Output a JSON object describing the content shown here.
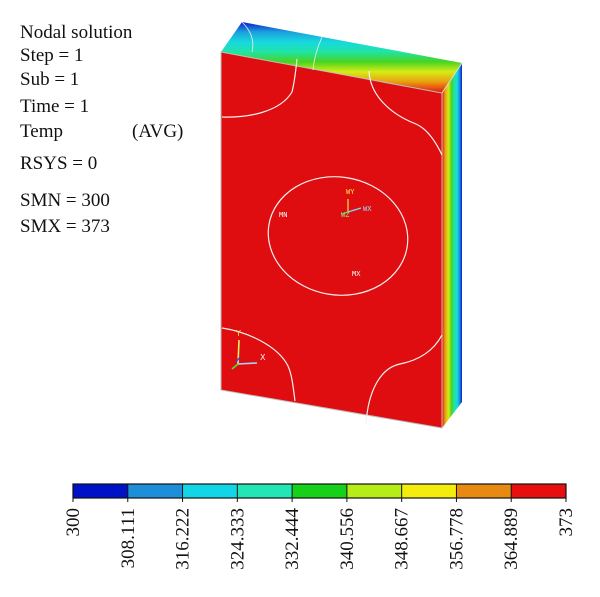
{
  "info": {
    "title": "Nodal solution",
    "step": "Step = 1",
    "sub": "Sub = 1",
    "time": "Time = 1",
    "temp": "Temp",
    "avg": "(AVG)",
    "rsys": "RSYS = 0",
    "smn": "SMN = 300",
    "smx": "SMX = 373"
  },
  "model": {
    "labels": {
      "mn": "MN",
      "mx": "MX",
      "wy": "WY",
      "wz": "WZ",
      "wx": "WX"
    },
    "triad": {
      "y": "Y",
      "x": "X"
    },
    "colors": {
      "body": "#e00d10",
      "outline": "#f0f0f0"
    }
  },
  "legend": {
    "ticks": [
      "300",
      "308.111",
      "316.222",
      "324.333",
      "332.444",
      "340.556",
      "348.667",
      "356.778",
      "364.889",
      "373"
    ],
    "colors": [
      "#0012c8",
      "#1d8fd9",
      "#13d5e8",
      "#22e7b4",
      "#17d01a",
      "#b6ec17",
      "#f4ec0c",
      "#e88a12",
      "#e8100e"
    ]
  }
}
